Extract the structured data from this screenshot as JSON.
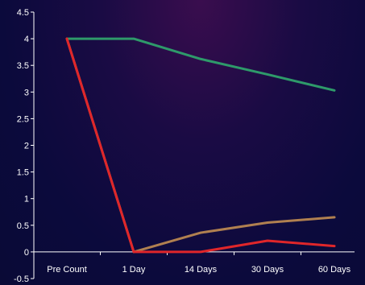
{
  "chart_data": {
    "type": "line",
    "title": "",
    "xlabel": "",
    "ylabel": "",
    "categories": [
      "Pre Count",
      "1 Day",
      "14 Days",
      "30 Days",
      "60 Days"
    ],
    "ylim": [
      -0.5,
      4.5
    ],
    "yticks": [
      "-0.5",
      "0",
      "0.5",
      "1",
      "1.5",
      "2",
      "2.5",
      "3",
      "3.5",
      "4",
      "4.5"
    ],
    "grid": false,
    "legend": "none",
    "series": [
      {
        "color": "#2e9a6a",
        "values": [
          4,
          4,
          3.62,
          3.33,
          3.03
        ]
      },
      {
        "color": "#b08050",
        "values": [
          4,
          0,
          0.36,
          0.55,
          0.65
        ]
      },
      {
        "color": "#e0262a",
        "values": [
          4,
          0,
          0,
          0.21,
          0.11
        ]
      }
    ]
  }
}
